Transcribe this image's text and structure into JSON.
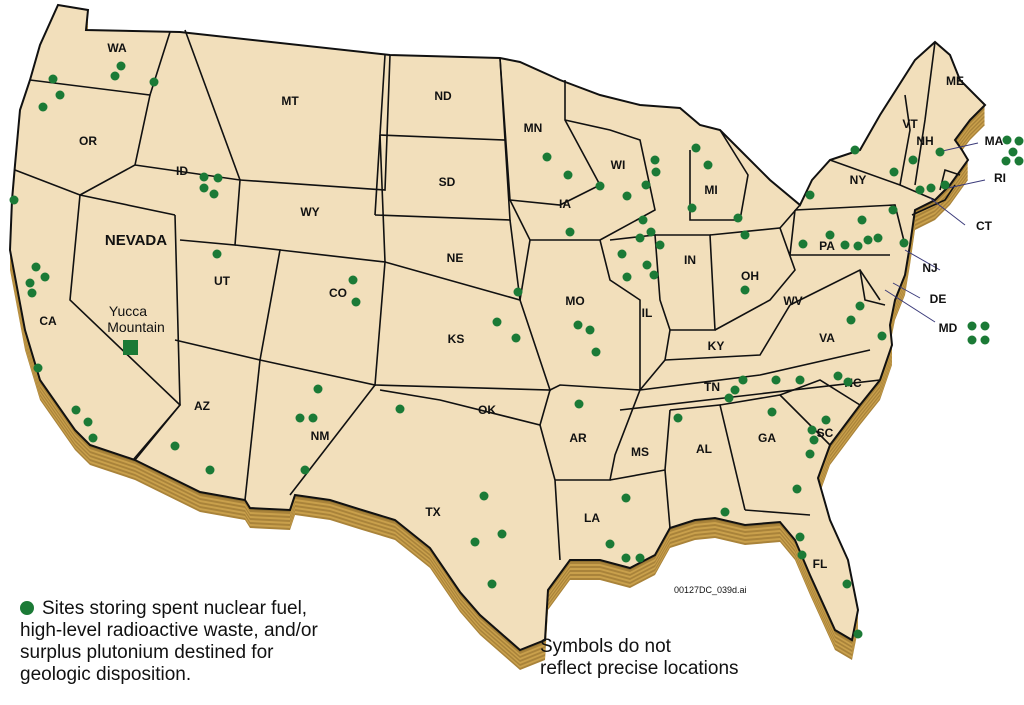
{
  "map": {
    "colors": {
      "land": "#f2dfbb",
      "wall": "#c9a04c",
      "wall_dark": "#5a4418",
      "border": "#111111",
      "site_dot": "#1b7a36"
    },
    "state_labels": [
      "WA",
      "OR",
      "CA",
      "ID",
      "MT",
      "WY",
      "UT",
      "CO",
      "AZ",
      "NM",
      "ND",
      "SD",
      "NE",
      "KS",
      "OK",
      "TX",
      "MN",
      "IA",
      "MO",
      "AR",
      "LA",
      "WI",
      "IL",
      "MI",
      "IN",
      "OH",
      "KY",
      "TN",
      "MS",
      "AL",
      "GA",
      "FL",
      "SC",
      "NC",
      "VA",
      "WV",
      "PA",
      "NY",
      "VT",
      "NH",
      "ME",
      "MA",
      "RI",
      "CT",
      "NJ",
      "DE",
      "MD"
    ],
    "nevada_label": "NEVADA",
    "yucca_label_line1": "Yucca",
    "yucca_label_line2": "Mountain",
    "site_marker_icon": "green-circle",
    "repository_marker_icon": "green-square"
  },
  "legend": {
    "text": "Sites storing spent nuclear fuel, high-level radioactive waste, and/or surplus plutonium destined for geologic disposition."
  },
  "note": {
    "line1": "Symbols do not",
    "line2": "reflect precise locations"
  },
  "file_label": "00127DC_039d.ai"
}
